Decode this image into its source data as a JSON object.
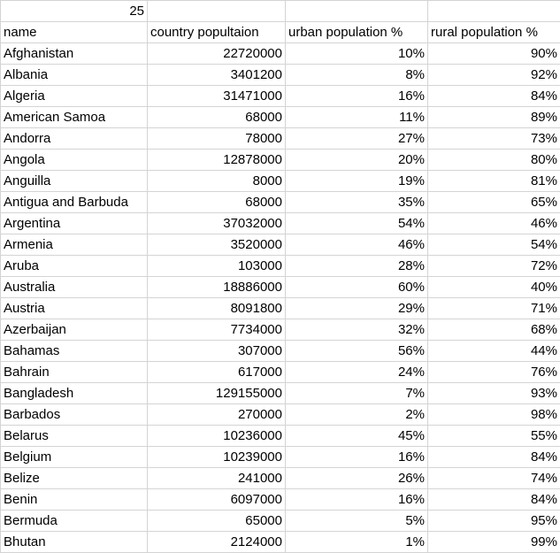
{
  "top_cell": "25",
  "headers": [
    "name",
    "country popultaion",
    "urban population %",
    "rural population %"
  ],
  "rows": [
    [
      "Afghanistan",
      "22720000",
      "10%",
      "90%"
    ],
    [
      "Albania",
      "3401200",
      "8%",
      "92%"
    ],
    [
      "Algeria",
      "31471000",
      "16%",
      "84%"
    ],
    [
      "American Samoa",
      "68000",
      "11%",
      "89%"
    ],
    [
      "Andorra",
      "78000",
      "27%",
      "73%"
    ],
    [
      "Angola",
      "12878000",
      "20%",
      "80%"
    ],
    [
      "Anguilla",
      "8000",
      "19%",
      "81%"
    ],
    [
      "Antigua and Barbuda",
      "68000",
      "35%",
      "65%"
    ],
    [
      "Argentina",
      "37032000",
      "54%",
      "46%"
    ],
    [
      "Armenia",
      "3520000",
      "46%",
      "54%"
    ],
    [
      "Aruba",
      "103000",
      "28%",
      "72%"
    ],
    [
      "Australia",
      "18886000",
      "60%",
      "40%"
    ],
    [
      "Austria",
      "8091800",
      "29%",
      "71%"
    ],
    [
      "Azerbaijan",
      "7734000",
      "32%",
      "68%"
    ],
    [
      "Bahamas",
      "307000",
      "56%",
      "44%"
    ],
    [
      "Bahrain",
      "617000",
      "24%",
      "76%"
    ],
    [
      "Bangladesh",
      "129155000",
      "7%",
      "93%"
    ],
    [
      "Barbados",
      "270000",
      "2%",
      "98%"
    ],
    [
      "Belarus",
      "10236000",
      "45%",
      "55%"
    ],
    [
      "Belgium",
      "10239000",
      "16%",
      "84%"
    ],
    [
      "Belize",
      "241000",
      "26%",
      "74%"
    ],
    [
      "Benin",
      "6097000",
      "16%",
      "84%"
    ],
    [
      "Bermuda",
      "65000",
      "5%",
      "95%"
    ],
    [
      "Bhutan",
      "2124000",
      "1%",
      "99%"
    ]
  ]
}
